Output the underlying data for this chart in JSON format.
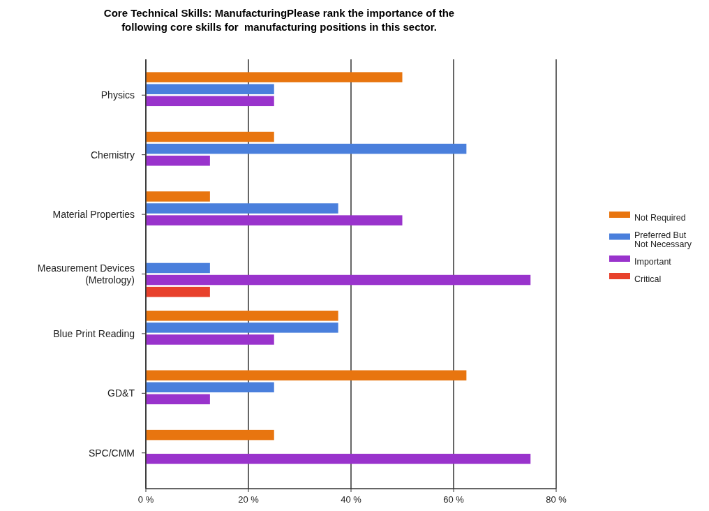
{
  "chart_data": {
    "type": "bar",
    "orientation": "horizontal",
    "title": "Core Technical Skills: ManufacturingPlease rank the importance of the following core skills for  manufacturing positions in this sector.",
    "categories": [
      "Physics",
      "Chemistry",
      "Material Properties",
      "Measurement Devices (Metrology)",
      "Blue Print Reading",
      "GD&T",
      "SPC/CMM"
    ],
    "series": [
      {
        "name": "Not Required",
        "color": "#e8750f",
        "values": [
          50,
          25,
          12.5,
          null,
          37.5,
          62.5,
          25
        ]
      },
      {
        "name": "Preferred But Not Necessary",
        "color": "#4a7fdc",
        "values": [
          25,
          62.5,
          37.5,
          12.5,
          37.5,
          25,
          null
        ]
      },
      {
        "name": "Important",
        "color": "#9933cc",
        "values": [
          25,
          12.5,
          50,
          75,
          25,
          12.5,
          75
        ]
      },
      {
        "name": "Critical",
        "color": "#e8412c",
        "values": [
          null,
          null,
          null,
          12.5,
          null,
          null,
          null
        ]
      }
    ],
    "xlim": [
      0,
      80
    ],
    "xticks": [
      {
        "value": 0,
        "label": "0 %"
      },
      {
        "value": 20,
        "label": "20 %"
      },
      {
        "value": 40,
        "label": "40 %"
      },
      {
        "value": 60,
        "label": "60 %"
      },
      {
        "value": 80,
        "label": "80 %"
      }
    ],
    "grid": "x",
    "legend": "right"
  }
}
